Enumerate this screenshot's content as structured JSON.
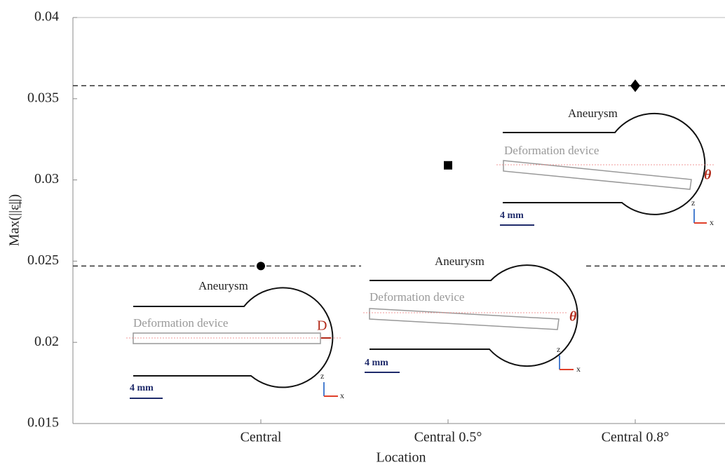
{
  "chart_data": {
    "type": "scatter",
    "y_label": "Max(||ε̲||)",
    "x_label": "Location",
    "categories": [
      "Central",
      "Central 0.5°",
      "Central 0.8°"
    ],
    "values": [
      0.0247,
      0.0309,
      0.0358
    ],
    "markers": [
      "circle",
      "square",
      "diamond"
    ],
    "color": "#000000",
    "hlines": [
      0.0358,
      0.0247
    ],
    "ylim": [
      0.015,
      0.04
    ],
    "yticks": [
      0.015,
      0.02,
      0.025,
      0.03,
      0.035,
      0.04
    ],
    "insets": [
      {
        "aneurysm": "Aneurysm",
        "device": "Deformation device",
        "symbol": "D",
        "scale": "4 mm",
        "axis_z": "z",
        "axis_x": "x"
      },
      {
        "aneurysm": "Aneurysm",
        "device": "Deformation device",
        "symbol": "θ",
        "scale": "4 mm",
        "axis_z": "z",
        "axis_x": "x"
      },
      {
        "aneurysm": "Aneurysm",
        "device": "Deformation device",
        "symbol": "θ",
        "scale": "4 mm",
        "axis_z": "z",
        "axis_x": "x"
      }
    ]
  }
}
